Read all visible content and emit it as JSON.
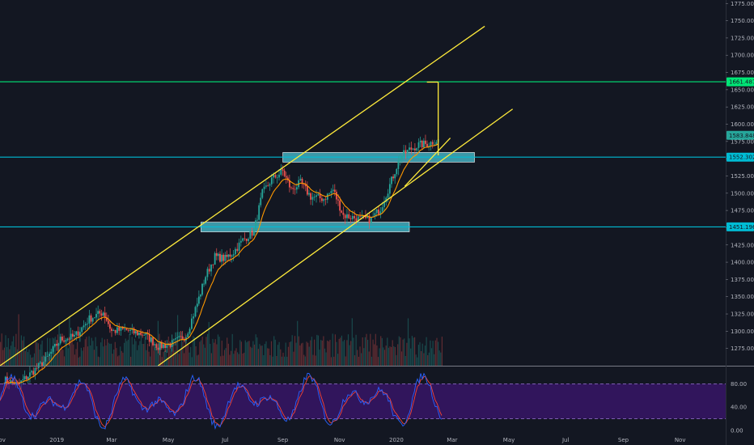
{
  "chart_data": {
    "type": "candlestick",
    "ylim": [
      1250,
      1780
    ],
    "y_ticks": [
      "1775.000",
      "1750.000",
      "1725.000",
      "1700.000",
      "1675.000",
      "1650.000",
      "1625.000",
      "1600.000",
      "1575.000",
      "1550.000",
      "1525.000",
      "1500.000",
      "1475.000",
      "1450.000",
      "1425.000",
      "1400.000",
      "1375.000",
      "1350.000",
      "1325.000",
      "1300.000",
      "1275.000"
    ],
    "x_ticks": [
      "Nov",
      "2019",
      "Mar",
      "May",
      "Jul",
      "Sep",
      "Nov",
      "2020",
      "Mar",
      "May",
      "Jul",
      "Sep",
      "Nov"
    ],
    "x_range": [
      "2018-11-01",
      "2020-12-20"
    ],
    "price_labels": [
      {
        "value": "1661.487",
        "color": "#00e676"
      },
      {
        "value": "1583.848",
        "color": "#26a69a"
      },
      {
        "value": "1552.302",
        "color": "#00bcd4"
      },
      {
        "value": "1451.196",
        "color": "#00bcd4"
      }
    ],
    "horizontal_lines": [
      {
        "price": 1661.487,
        "color": "#00e676"
      },
      {
        "price": 1552.302,
        "color": "#00bcd4"
      },
      {
        "price": 1451.196,
        "color": "#00bcd4"
      }
    ],
    "zones": [
      {
        "x_from": "2019-09-01",
        "x_to": "2020-03-25",
        "price_from": 1545,
        "price_to": 1559
      },
      {
        "x_from": "2019-06-05",
        "x_to": "2020-01-15",
        "price_from": 1444,
        "price_to": 1458
      }
    ],
    "trend_lines": [
      {
        "from": [
          "2018-11-01",
          1250
        ],
        "to": [
          "2020-04-05",
          1742
        ]
      },
      {
        "from": [
          "2019-04-20",
          1250
        ],
        "to": [
          "2020-05-05",
          1622
        ]
      },
      {
        "from": [
          "2020-01-10",
          1510
        ],
        "to": [
          "2020-02-28",
          1580
        ]
      }
    ],
    "measure": {
      "date": "2020-02-15",
      "from": 1555,
      "to": 1661
    },
    "close_path": [
      [
        "2018-11-05",
        1230
      ],
      [
        "2018-11-20",
        1222
      ],
      [
        "2018-12-05",
        1240
      ],
      [
        "2018-12-20",
        1258
      ],
      [
        "2019-01-05",
        1288
      ],
      [
        "2019-01-20",
        1292
      ],
      [
        "2019-02-05",
        1318
      ],
      [
        "2019-02-20",
        1328
      ],
      [
        "2019-03-01",
        1300
      ],
      [
        "2019-03-15",
        1302
      ],
      [
        "2019-03-25",
        1298
      ],
      [
        "2019-04-05",
        1296
      ],
      [
        "2019-04-20",
        1278
      ],
      [
        "2019-05-05",
        1282
      ],
      [
        "2019-05-20",
        1294
      ],
      [
        "2019-06-01",
        1340
      ],
      [
        "2019-06-10",
        1380
      ],
      [
        "2019-06-20",
        1408
      ],
      [
        "2019-07-01",
        1405
      ],
      [
        "2019-07-10",
        1415
      ],
      [
        "2019-07-20",
        1432
      ],
      [
        "2019-08-01",
        1445
      ],
      [
        "2019-08-10",
        1500
      ],
      [
        "2019-08-20",
        1520
      ],
      [
        "2019-09-01",
        1532
      ],
      [
        "2019-09-10",
        1505
      ],
      [
        "2019-09-20",
        1515
      ],
      [
        "2019-10-01",
        1495
      ],
      [
        "2019-10-15",
        1492
      ],
      [
        "2019-10-25",
        1505
      ],
      [
        "2019-11-05",
        1468
      ],
      [
        "2019-11-15",
        1465
      ],
      [
        "2019-11-25",
        1462
      ],
      [
        "2019-12-05",
        1462
      ],
      [
        "2019-12-15",
        1478
      ],
      [
        "2019-12-25",
        1512
      ],
      [
        "2020-01-05",
        1552
      ],
      [
        "2020-01-15",
        1563
      ],
      [
        "2020-01-25",
        1570
      ],
      [
        "2020-02-05",
        1572
      ],
      [
        "2020-02-15",
        1578
      ]
    ],
    "volume_window": [
      "2018-11-01",
      "2020-02-20"
    ],
    "stochastic": {
      "levels": [
        "80.00",
        "40.00",
        "0.00"
      ],
      "band": [
        20,
        80
      ],
      "k_color": "#2962ff",
      "d_color": "#f44336",
      "band_color": "#4a148c"
    },
    "colors": {
      "up": "#26a69a",
      "down": "#ef5350",
      "ema": "#ff9800",
      "channel": "#ffeb3b",
      "background": "#131722",
      "separator": "#787b86"
    }
  }
}
